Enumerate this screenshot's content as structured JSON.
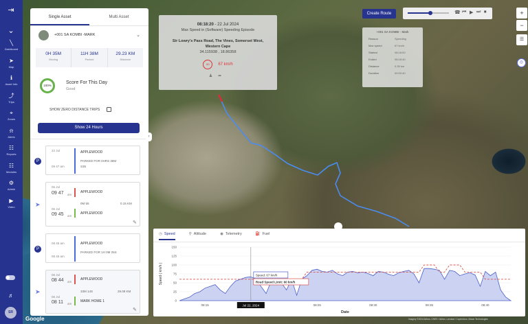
{
  "nav": {
    "items": [
      {
        "label": "Dashboard",
        "icon": "chart-line-icon"
      },
      {
        "label": "Map",
        "icon": "navigation-icon"
      },
      {
        "label": "Asset Info",
        "icon": "asset-info-icon"
      },
      {
        "label": "Trips",
        "icon": "trips-icon"
      },
      {
        "label": "Zones",
        "icon": "zones-icon"
      },
      {
        "label": "Alerts",
        "icon": "bell-icon"
      },
      {
        "label": "Reports",
        "icon": "reports-icon"
      },
      {
        "label": "Modules",
        "icon": "modules-icon"
      },
      {
        "label": "Admin",
        "icon": "admin-icon"
      },
      {
        "label": "Video",
        "icon": "video-icon"
      }
    ],
    "avatar_initials": "SR"
  },
  "panel": {
    "tabs": [
      "Single Asset",
      "Multi Asset"
    ],
    "active_tab": "Single Asset",
    "asset_name": "+001 SA KOMBI -MARK",
    "stats": [
      {
        "value": "0H 35M",
        "label": "Moving"
      },
      {
        "value": "11H 38M",
        "label": "Parked"
      },
      {
        "value": "29.23 KM",
        "label": "Distance"
      }
    ],
    "score": {
      "ring": "100%",
      "title": "Score For This Day",
      "subtitle": "Good"
    },
    "zero_distance_label": "SHOW ZERO DISTANCE TRIPS",
    "show24_label": "Show 24 Hours"
  },
  "trips": [
    {
      "ampm": "22 Jul",
      "time": "",
      "loc": "APPLEWOOD",
      "note": "PARKED FOR 0HRS 38M",
      "note2": "S35",
      "time2": "09 47 am"
    },
    {
      "start_small": "06 Jul",
      "start": "09 47",
      "start_sfx": "am",
      "loc1": "APPLEWOOD",
      "dur": "0M 55",
      "dist": "0.15 KM",
      "end_small": "06 Jul",
      "end": "09 45",
      "end_sfx": "am",
      "loc2": "APPLEWOOD"
    },
    {
      "ampm": "08 45 am",
      "loc": "APPLEWOOD",
      "note": "PARKED FOR 1H 0M 25S",
      "time2": "08 45 am"
    },
    {
      "start_small": "06 Jul",
      "start": "08 44",
      "start_sfx": "am",
      "loc1": "APPLEWOOD",
      "dur": "33M 14S",
      "dist": "29.08 KM",
      "end_small": "06 Jul",
      "end": "08 11",
      "end_sfx": "am",
      "loc2": "MARK HOME 1"
    }
  ],
  "popup": {
    "time": "08:18:20",
    "date": " - 22 Jul 2024",
    "subtitle": "Max Speed in (Software) Speeding Episode",
    "address": "Sir Lowry's Pass Road, The Vines, Somerset West, Western Cape",
    "coords": "34.115938 , 18.86358",
    "speed_sign": "60",
    "speed": "67 km/h"
  },
  "toolbar": {
    "create_route": "Create Route",
    "progress": 0.55
  },
  "infobox": {
    "title": "+001 SA KOMBI - Mark",
    "rows": [
      {
        "k": "Reason",
        "v": "Speeding"
      },
      {
        "k": "Max speed",
        "v": "67 km/h"
      },
      {
        "k": "Started",
        "v": "08:18:00"
      },
      {
        "k": "Ended",
        "v": "08:18:40"
      },
      {
        "k": "Distance",
        "v": "0.35 km"
      },
      {
        "k": "Duration",
        "v": "00:00:40"
      }
    ]
  },
  "chart_tabs": [
    "Speed",
    "Altitude",
    "Telemetry",
    "Fuel"
  ],
  "chart_data": {
    "type": "area",
    "ylabel": "Speed ( km/h )",
    "xlabel": "Date",
    "ylim": [
      0,
      150
    ],
    "yticks": [
      0,
      25,
      50,
      75,
      100,
      125,
      150
    ],
    "xticks": [
      "08:15",
      "08:20",
      "08:25",
      "08:30",
      "08:35",
      "08:40"
    ],
    "x": [
      0,
      0.5,
      1,
      1.5,
      2,
      2.5,
      3,
      3.5,
      4,
      4.5,
      5,
      5.5,
      6,
      6.5,
      7,
      7.5,
      8,
      8.5,
      9,
      9.5,
      10,
      10.5,
      11,
      11.5,
      12,
      12.5,
      13,
      13.5,
      14,
      14.5,
      15,
      15.5,
      16,
      16.5,
      17,
      17.5,
      18,
      18.5,
      19,
      19.5,
      20,
      20.5,
      21,
      21.5,
      22,
      22.5,
      23,
      23.5,
      24,
      24.5,
      25,
      25.5,
      26,
      26.5,
      27,
      27.5,
      28,
      28.5,
      29,
      29.5,
      30,
      30.5,
      31,
      31.5,
      32,
      32.5
    ],
    "series": [
      {
        "values": [
          0,
          5,
          10,
          20,
          25,
          35,
          40,
          45,
          30,
          20,
          40,
          55,
          60,
          65,
          67,
          60,
          40,
          20,
          55,
          60,
          50,
          30,
          60,
          15,
          60,
          70,
          85,
          88,
          82,
          80,
          85,
          75,
          70,
          80,
          82,
          78,
          80,
          76,
          70,
          82,
          80,
          74,
          70,
          78,
          82,
          85,
          75,
          50,
          90,
          90,
          88,
          85,
          60,
          85,
          82,
          70,
          75,
          78,
          72,
          40,
          82,
          70,
          80,
          30,
          10,
          0
        ]
      },
      {
        "name": "Road Speed Limit",
        "values": [
          60,
          60,
          60,
          60,
          60,
          60,
          60,
          60,
          60,
          60,
          60,
          60,
          60,
          60,
          60,
          60,
          60,
          60,
          60,
          60,
          60,
          60,
          60,
          60,
          60,
          80,
          80,
          80,
          80,
          80,
          80,
          80,
          80,
          80,
          80,
          80,
          80,
          80,
          80,
          80,
          80,
          80,
          80,
          80,
          80,
          80,
          80,
          80,
          100,
          100,
          100,
          80,
          80,
          100,
          100,
          100,
          80,
          80,
          80,
          80,
          60,
          60,
          60,
          60,
          60,
          60
        ]
      }
    ],
    "tooltip": {
      "date": "Jul 22, 2024",
      "speed_label": "Speed:",
      "speed": "67 km/h",
      "limit_label": "Road Speed Limit:",
      "limit": "60 km/h"
    }
  },
  "map": {
    "google": "Google",
    "attribution": "Imagery ©2024 Airbus, CNES / Airbus, Landsat / Copernicus, Maxar Technologies"
  }
}
